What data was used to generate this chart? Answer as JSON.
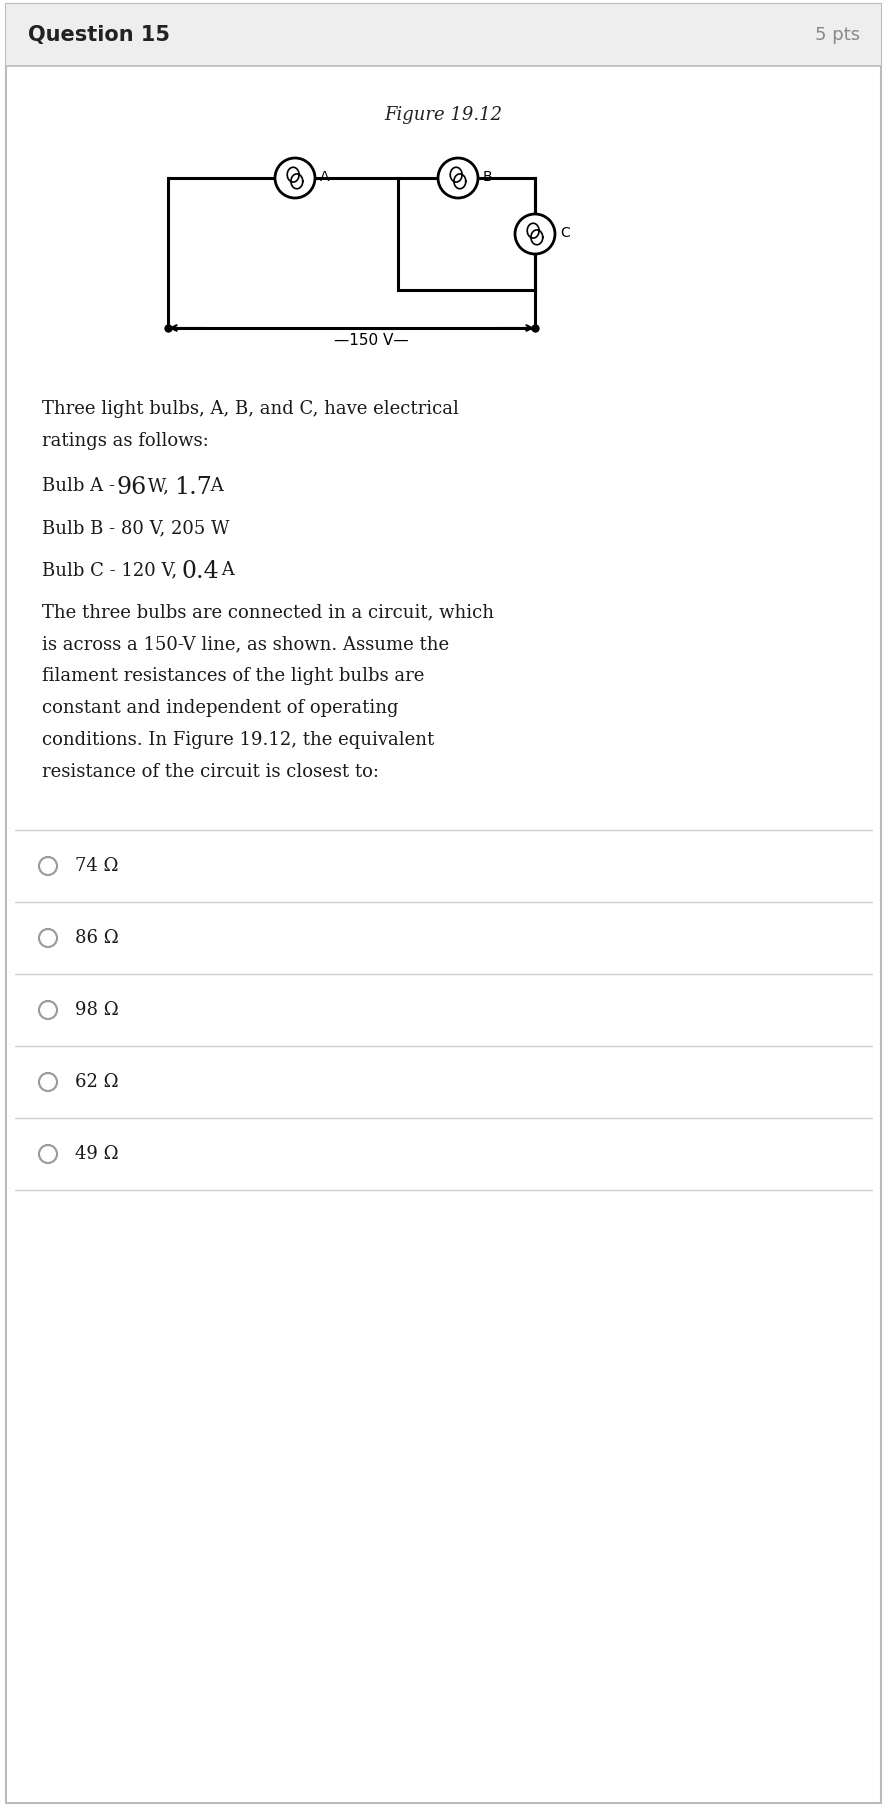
{
  "header_text": "Question 15",
  "pts_text": "5 pts",
  "figure_title": "Figure 19.12",
  "para1": "Three light bulbs, A, B, and C, have electrical\nratings as follows:",
  "bulb_a_prefix": "Bulb A - ",
  "bulb_a_big1": "96",
  "bulb_a_mid": " W, ",
  "bulb_a_big2": "1.7",
  "bulb_a_suffix": " A",
  "bulb_b_text": "Bulb B - 80 V, 205 W",
  "bulb_c_prefix": "Bulb C - 120 V, ",
  "bulb_c_big": "0.4",
  "bulb_c_suffix": " A",
  "para2": "The three bulbs are connected in a circuit, which\nis across a 150-V line, as shown. Assume the\nfilament resistances of the light bulbs are\nconstant and independent of operating\nconditions. In Figure 19.12, the equivalent\nresistance of the circuit is closest to:",
  "voltage_label": "150 V",
  "choices": [
    "74 Ω",
    "86 Ω",
    "98 Ω",
    "62 Ω",
    "49 Ω"
  ],
  "bg_color": "#ffffff",
  "header_bg": "#eeeeee",
  "border_color": "#bbbbbb",
  "text_color": "#1a1a1a",
  "choice_divider_color": "#cccccc",
  "header_font_size": 15,
  "body_font_size": 13,
  "choice_font_size": 13
}
